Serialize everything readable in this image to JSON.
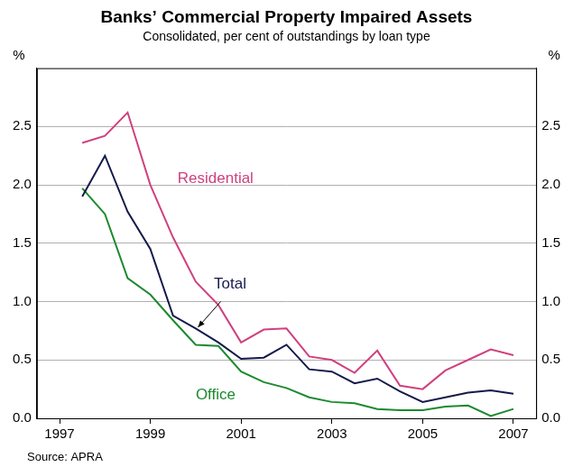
{
  "chart_data": {
    "type": "line",
    "title": "Banks’ Commercial Property Impaired Assets",
    "subtitle": "Consolidated, per cent of outstandings by loan type",
    "source": "Source: APRA",
    "y_label": "%",
    "x": [
      1997.5,
      1998.0,
      1998.5,
      1999.0,
      1999.5,
      2000.0,
      2000.5,
      2001.0,
      2001.5,
      2002.0,
      2002.5,
      2003.0,
      2003.5,
      2004.0,
      2004.5,
      2005.0,
      2005.5,
      2006.0,
      2006.5,
      2007.0
    ],
    "series": [
      {
        "name": "Residential",
        "color": "#d0407f",
        "values": [
          2.36,
          2.42,
          2.62,
          2.0,
          1.55,
          1.17,
          0.97,
          0.65,
          0.76,
          0.77,
          0.53,
          0.5,
          0.39,
          0.58,
          0.28,
          0.25,
          0.41,
          0.5,
          0.59,
          0.54
        ]
      },
      {
        "name": "Total",
        "color": "#141a4a",
        "values": [
          1.9,
          2.25,
          1.77,
          1.45,
          0.88,
          0.77,
          0.65,
          0.51,
          0.52,
          0.63,
          0.42,
          0.4,
          0.3,
          0.34,
          0.23,
          0.14,
          0.18,
          0.22,
          0.24,
          0.21
        ]
      },
      {
        "name": "Office",
        "color": "#1b8a2e",
        "values": [
          1.97,
          1.75,
          1.2,
          1.06,
          0.84,
          0.63,
          0.62,
          0.4,
          0.31,
          0.26,
          0.18,
          0.14,
          0.13,
          0.08,
          0.07,
          0.07,
          0.1,
          0.11,
          0.02,
          0.08
        ]
      }
    ],
    "xlim": [
      1996.5,
      2007.5
    ],
    "xticks": [
      1997,
      1999,
      2001,
      2003,
      2005,
      2007
    ],
    "ylim": [
      0,
      3
    ],
    "yticks": [
      {
        "value": 0,
        "label": "0.0"
      },
      {
        "value": 0.5,
        "label": "0.5"
      },
      {
        "value": 1,
        "label": "1.0"
      },
      {
        "value": 1.5,
        "label": "1.5"
      },
      {
        "value": 2,
        "label": "2.0"
      },
      {
        "value": 2.5,
        "label": "2.5"
      }
    ],
    "grid": true
  }
}
